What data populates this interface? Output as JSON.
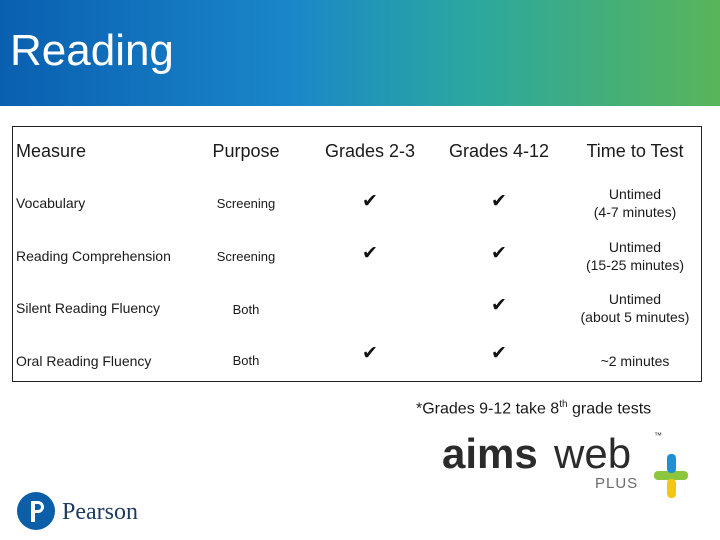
{
  "slide": {
    "title": "Reading",
    "colors": {
      "header_start": "#0a5fb0",
      "header_end": "#59b55a",
      "plus_blue": "#1f8fd6",
      "plus_green": "#8cc63f",
      "plus_yellow": "#f3c614"
    }
  },
  "table": {
    "headers": [
      "Measure",
      "Purpose",
      "Grades 2-3",
      "Grades 4-12",
      "Time to Test"
    ],
    "rows": [
      {
        "measure": "Vocabulary",
        "purpose": "Screening",
        "g23": "✔",
        "g412": "✔",
        "time_line1": "Untimed",
        "time_line2": "(4-7 minutes)"
      },
      {
        "measure": "Reading Comprehension",
        "purpose": "Screening",
        "g23": "✔",
        "g412": "✔",
        "time_line1": "Untimed",
        "time_line2": "(15-25 minutes)"
      },
      {
        "measure": "Silent Reading Fluency",
        "purpose": "Both",
        "g23": "",
        "g412": "✔",
        "time_line1": "Untimed",
        "time_line2": "(about 5 minutes)"
      },
      {
        "measure": "Oral Reading Fluency",
        "purpose": "Both",
        "g23": "✔",
        "g412": "✔",
        "time_line1": "~2 minutes",
        "time_line2": ""
      }
    ]
  },
  "footnote": {
    "before": "*Grades 9-12 take 8",
    "sup": "th",
    "after": " grade tests"
  },
  "logos": {
    "aimsweb": {
      "text_aims": "aims",
      "text_web": "web",
      "tm": "™",
      "plus": "PLUS"
    },
    "pearson": {
      "name": "Pearson"
    }
  }
}
